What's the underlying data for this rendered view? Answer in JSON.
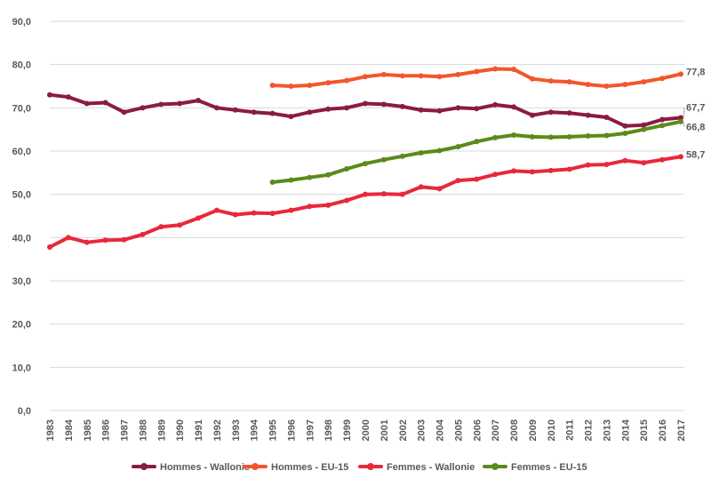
{
  "chart_data": {
    "type": "line",
    "ylim": [
      0,
      90
    ],
    "yticks": [
      "0,0",
      "10,0",
      "20,0",
      "30,0",
      "40,0",
      "50,0",
      "60,0",
      "70,0",
      "80,0",
      "90,0"
    ],
    "grid": "horizontal",
    "legend_position": "bottom",
    "x": [
      "1983",
      "1984",
      "1985",
      "1986",
      "1987",
      "1988",
      "1989",
      "1990",
      "1991",
      "1992",
      "1993",
      "1994",
      "1995",
      "1996",
      "1997",
      "1998",
      "1999",
      "2000",
      "2001",
      "2002",
      "2003",
      "2004",
      "2005",
      "2006",
      "2007",
      "2008",
      "2009",
      "2010",
      "2011",
      "2012",
      "2013",
      "2014",
      "2015",
      "2016",
      "2017"
    ],
    "series": [
      {
        "name": "Hommes - Wallonie",
        "color": "#8b1a45",
        "values": [
          73.0,
          72.5,
          71.0,
          71.2,
          69.0,
          70.0,
          70.8,
          71.0,
          71.7,
          70.0,
          69.5,
          69.0,
          68.7,
          68.0,
          69.0,
          69.7,
          70.0,
          71.0,
          70.8,
          70.3,
          69.5,
          69.3,
          70.0,
          69.8,
          70.7,
          70.2,
          68.3,
          69.0,
          68.8,
          68.3,
          67.8,
          65.8,
          66.0,
          67.3,
          67.7
        ],
        "end_label": "67,7"
      },
      {
        "name": "Hommes - EU-15",
        "color": "#f4562c",
        "values": [
          null,
          null,
          null,
          null,
          null,
          null,
          null,
          null,
          null,
          null,
          null,
          null,
          75.2,
          75.0,
          75.2,
          75.8,
          76.3,
          77.2,
          77.7,
          77.4,
          77.4,
          77.2,
          77.7,
          78.4,
          79.0,
          78.9,
          76.7,
          76.2,
          76.0,
          75.4,
          75.0,
          75.4,
          76.0,
          76.8,
          77.8
        ],
        "end_label": "77,8"
      },
      {
        "name": "Femmes - Wallonie",
        "color": "#e8283b",
        "values": [
          37.8,
          40.0,
          38.9,
          39.4,
          39.5,
          40.7,
          42.5,
          42.9,
          44.5,
          46.3,
          45.3,
          45.7,
          45.6,
          46.3,
          47.2,
          47.5,
          48.6,
          50.0,
          50.1,
          50.0,
          51.7,
          51.3,
          53.2,
          53.5,
          54.6,
          55.4,
          55.2,
          55.5,
          55.8,
          56.8,
          56.9,
          57.8,
          57.3,
          58.0,
          58.7
        ],
        "end_label": "58,7"
      },
      {
        "name": "Femmes - EU-15",
        "color": "#5b8a1a",
        "values": [
          null,
          null,
          null,
          null,
          null,
          null,
          null,
          null,
          null,
          null,
          null,
          null,
          52.8,
          53.3,
          53.9,
          54.5,
          55.9,
          57.1,
          58.0,
          58.8,
          59.6,
          60.1,
          61.0,
          62.2,
          63.1,
          63.7,
          63.3,
          63.2,
          63.3,
          63.5,
          63.6,
          64.1,
          65.0,
          65.9,
          66.8
        ],
        "end_label": "66,8"
      }
    ]
  }
}
